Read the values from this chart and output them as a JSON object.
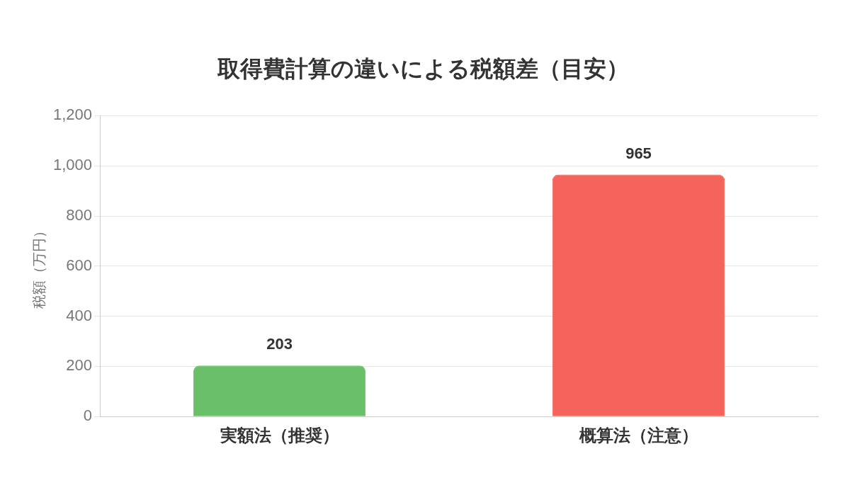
{
  "chart_data": {
    "type": "bar",
    "title": "取得費計算の違いによる税額差（目安）",
    "ylabel": "税額（万円）",
    "categories": [
      "実額法（推奨）",
      "概算法（注意）"
    ],
    "values": [
      203,
      965
    ],
    "colors": [
      "#6abf69",
      "#f4645a"
    ],
    "ylim": [
      0,
      1200
    ],
    "yticks": [
      0,
      200,
      400,
      600,
      800,
      {
        "value": 1000,
        "label": "1,000"
      },
      {
        "value": 1200,
        "label": "1,200"
      }
    ],
    "grid": "y",
    "data_labels": true
  }
}
